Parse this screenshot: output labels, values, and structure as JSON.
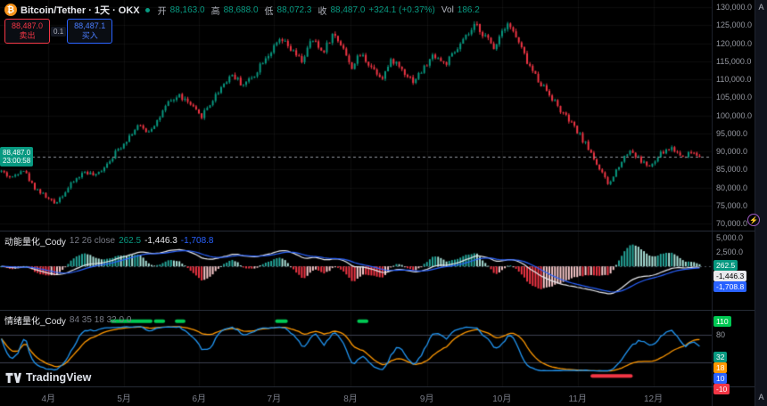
{
  "header": {
    "symbol_title": "Bitcoin/Tether · 1天 · OKX",
    "ohlc": {
      "open_label": "开",
      "open": "88,163.0",
      "high_label": "高",
      "high": "88,688.0",
      "low_label": "低",
      "low": "88,072.3",
      "close_label": "收",
      "close": "88,487.0",
      "change": "+324.1 (+0.37%)",
      "vol_label": "Vol",
      "vol": "186.2"
    },
    "sell": {
      "price": "88,487.0",
      "label": "卖出"
    },
    "buy": {
      "price": "88,487.1",
      "label": "买入"
    },
    "spread": "0.1"
  },
  "current_price": {
    "value": "88,487.0",
    "countdown": "23:00:58"
  },
  "price_scale": {
    "min": 70000,
    "max": 130000,
    "labels": [
      {
        "label": "130,000.0",
        "value": 130000
      },
      {
        "label": "125,000.0",
        "value": 125000
      },
      {
        "label": "120,000.0",
        "value": 120000
      },
      {
        "label": "115,000.0",
        "value": 115000
      },
      {
        "label": "110,000.0",
        "value": 110000
      },
      {
        "label": "105,000.0",
        "value": 105000
      },
      {
        "label": "100,000.0",
        "value": 100000
      },
      {
        "label": "95,000.0",
        "value": 95000
      },
      {
        "label": "90,000.0",
        "value": 90000
      },
      {
        "label": "85,000.0",
        "value": 85000
      },
      {
        "label": "80,000.0",
        "value": 80000
      },
      {
        "label": "75,000.0",
        "value": 75000
      },
      {
        "label": "70,000.0",
        "value": 70000
      }
    ]
  },
  "macd_panel": {
    "title": "动能量化_Cody",
    "params": "12 26 close",
    "hist_value": "262.5",
    "macd_value": "-1,446.3",
    "signal_value": "-1,708.8",
    "range": [
      -7000,
      5500
    ],
    "axis": [
      {
        "label": "5,000.0",
        "value": 5000
      },
      {
        "label": "2,500.0",
        "value": 2500
      },
      {
        "label": "0.00",
        "value": 0
      }
    ],
    "badges": [
      {
        "label": "262.5",
        "value": 262.5,
        "bg": "#089981",
        "fg": "#ffffff",
        "name": "macd-hist-badge"
      },
      {
        "label": "-1,446.3",
        "value": -1446.3,
        "bg": "#e8e9ed",
        "fg": "#000000",
        "name": "macd-line-badge"
      },
      {
        "label": "-1,708.8",
        "value": -1708.8,
        "bg": "#2962ff",
        "fg": "#ffffff",
        "name": "macd-signal-badge"
      }
    ]
  },
  "stoch_panel": {
    "title": "情绪量化_Cody",
    "params": "84 35 18 32 0 0",
    "range": [
      -25,
      125
    ],
    "levels": [
      80,
      20
    ],
    "axis": [
      {
        "label": "80",
        "value": 80
      }
    ],
    "badges": [
      {
        "label": "110",
        "value": 110,
        "bg": "#00c853",
        "fg": "#ffffff",
        "name": "stoch-top-badge"
      },
      {
        "label": "32",
        "value": 32,
        "bg": "#089981",
        "fg": "#ffffff",
        "name": "stoch-level-badge"
      },
      {
        "label": "18",
        "value": 18,
        "bg": "#ff9800",
        "fg": "#ffffff",
        "name": "stoch-slow-badge"
      },
      {
        "label": "10",
        "value": 10,
        "bg": "#2962ff",
        "fg": "#ffffff",
        "name": "stoch-fast-badge"
      },
      {
        "label": "-10",
        "value": -10,
        "bg": "#f23645",
        "fg": "#ffffff",
        "name": "stoch-bottom-badge"
      }
    ],
    "marker_green_level": 110,
    "marker_red_level": -10,
    "green_segments": [
      [
        0.16,
        0.215
      ],
      [
        0.222,
        0.233
      ],
      [
        0.252,
        0.262
      ],
      [
        0.395,
        0.408
      ],
      [
        0.512,
        0.523
      ]
    ],
    "red_segments": [
      [
        0.845,
        0.9
      ]
    ]
  },
  "time_axis": {
    "labels": [
      {
        "label": "4月",
        "pos": 0.069
      },
      {
        "label": "5月",
        "pos": 0.177
      },
      {
        "label": "6月",
        "pos": 0.284
      },
      {
        "label": "7月",
        "pos": 0.391
      },
      {
        "label": "8月",
        "pos": 0.5
      },
      {
        "label": "9月",
        "pos": 0.609
      },
      {
        "label": "10月",
        "pos": 0.716
      },
      {
        "label": "11月",
        "pos": 0.824
      },
      {
        "label": "12月",
        "pos": 0.932
      }
    ]
  },
  "misc": {
    "logo_text": "TradingView",
    "auto_top": "A",
    "auto_bottom": "A",
    "boost_glyph": "⚡"
  },
  "colors": {
    "bg": "#000000",
    "up": "#089981",
    "down": "#f23645",
    "hist_up": "#26a69a",
    "hist_up_light": "#ace5dc",
    "hist_down": "#f23645",
    "hist_down_light": "#fccbcd",
    "macd_line": "#e8e9ed",
    "signal_line": "#2962ff",
    "stoch_fast": "#2196f3",
    "stoch_slow": "#ff9800",
    "marker_green": "#00c853",
    "marker_red": "#f23645",
    "grid": "rgba(255,255,255,0.05)",
    "price_line": "#9598a1"
  },
  "chart_data": {
    "type": "candlestick",
    "symbol": "Bitcoin/Tether",
    "interval": "1天",
    "exchange": "OKX",
    "last_open": 88163.0,
    "last_high": 88688.0,
    "last_low": 88072.3,
    "last_close": 88487.0,
    "change": 324.1,
    "change_pct": 0.37,
    "volume": 186.2,
    "ylim": [
      70000,
      130000
    ],
    "x_months": [
      "4月",
      "5月",
      "6月",
      "7月",
      "8月",
      "9月",
      "10月",
      "11月",
      "12月"
    ],
    "candle_count": 252,
    "seed": 42,
    "noise": 0.016,
    "wick": 0.006,
    "price_path": [
      [
        0.0,
        84500
      ],
      [
        0.015,
        82500
      ],
      [
        0.03,
        85500
      ],
      [
        0.045,
        80500
      ],
      [
        0.06,
        78000
      ],
      [
        0.075,
        75500
      ],
      [
        0.09,
        78500
      ],
      [
        0.105,
        82000
      ],
      [
        0.12,
        84500
      ],
      [
        0.135,
        83000
      ],
      [
        0.15,
        86500
      ],
      [
        0.165,
        90000
      ],
      [
        0.18,
        93500
      ],
      [
        0.195,
        97000
      ],
      [
        0.21,
        95500
      ],
      [
        0.225,
        99000
      ],
      [
        0.24,
        103500
      ],
      [
        0.255,
        105500
      ],
      [
        0.27,
        103000
      ],
      [
        0.285,
        99500
      ],
      [
        0.3,
        103500
      ],
      [
        0.315,
        108000
      ],
      [
        0.33,
        111500
      ],
      [
        0.345,
        108500
      ],
      [
        0.36,
        110500
      ],
      [
        0.375,
        115500
      ],
      [
        0.39,
        118500
      ],
      [
        0.4,
        121000
      ],
      [
        0.415,
        118000
      ],
      [
        0.43,
        115000
      ],
      [
        0.445,
        121000
      ],
      [
        0.46,
        117500
      ],
      [
        0.475,
        122500
      ],
      [
        0.49,
        119000
      ],
      [
        0.5,
        113000
      ],
      [
        0.515,
        117000
      ],
      [
        0.53,
        113500
      ],
      [
        0.545,
        110500
      ],
      [
        0.56,
        115500
      ],
      [
        0.575,
        112500
      ],
      [
        0.59,
        109500
      ],
      [
        0.605,
        113000
      ],
      [
        0.62,
        117000
      ],
      [
        0.635,
        114000
      ],
      [
        0.65,
        117500
      ],
      [
        0.665,
        121500
      ],
      [
        0.68,
        125000
      ],
      [
        0.695,
        121500
      ],
      [
        0.705,
        118500
      ],
      [
        0.715,
        123000
      ],
      [
        0.725,
        126000
      ],
      [
        0.74,
        120500
      ],
      [
        0.755,
        114000
      ],
      [
        0.77,
        109500
      ],
      [
        0.785,
        106000
      ],
      [
        0.8,
        101500
      ],
      [
        0.815,
        98000
      ],
      [
        0.83,
        94000
      ],
      [
        0.845,
        89500
      ],
      [
        0.858,
        84500
      ],
      [
        0.87,
        80500
      ],
      [
        0.885,
        86500
      ],
      [
        0.9,
        90500
      ],
      [
        0.915,
        87500
      ],
      [
        0.93,
        85500
      ],
      [
        0.945,
        89500
      ],
      [
        0.96,
        91000
      ],
      [
        0.975,
        88500
      ],
      [
        0.99,
        90000
      ],
      [
        1.0,
        88487
      ]
    ],
    "indicators": [
      {
        "name": "动能量化_Cody",
        "type": "macd",
        "params": "12 26 close",
        "hist": 262.5,
        "macd": -1446.3,
        "signal": -1708.8
      },
      {
        "name": "情绪量化_Cody",
        "type": "oscillator",
        "params": "84 35 18 32 0 0",
        "levels": [
          80,
          20
        ]
      }
    ]
  }
}
